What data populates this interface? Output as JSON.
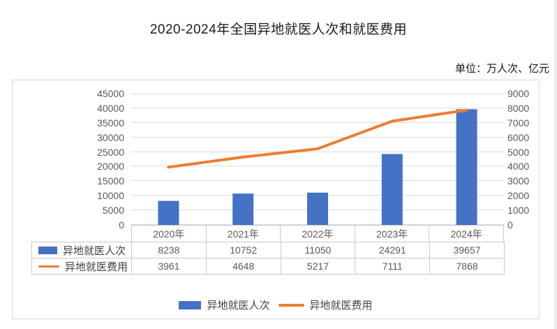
{
  "chart_data": {
    "type": "bar",
    "subtype": "bar-line-combo",
    "title": "2020-2024年全国异地就医人次和就医费用",
    "unit_label": "单位：万人次、亿元",
    "categories": [
      "2020年",
      "2021年",
      "2022年",
      "2023年",
      "2024年"
    ],
    "series": [
      {
        "name": "异地就医人次",
        "type": "bar",
        "axis": "left",
        "color": "#4472C4",
        "values": [
          8238,
          10752,
          11050,
          24291,
          39657
        ]
      },
      {
        "name": "异地就医费用",
        "type": "line",
        "axis": "right",
        "color": "#ED7D31",
        "values": [
          3961,
          4648,
          5217,
          7111,
          7868
        ]
      }
    ],
    "left_axis": {
      "min": 0,
      "max": 45000,
      "step": 5000
    },
    "right_axis": {
      "min": 0,
      "max": 9000,
      "step": 1000
    },
    "grid": true,
    "legend_position": "bottom",
    "data_table_shown": true
  },
  "colors": {
    "bar": "#4472C4",
    "line": "#ED7D31",
    "gridline": "#dcdcdc",
    "table_border": "#c9c9c9",
    "axis_text": "#595959",
    "panel_border": "#d7d7d7"
  }
}
